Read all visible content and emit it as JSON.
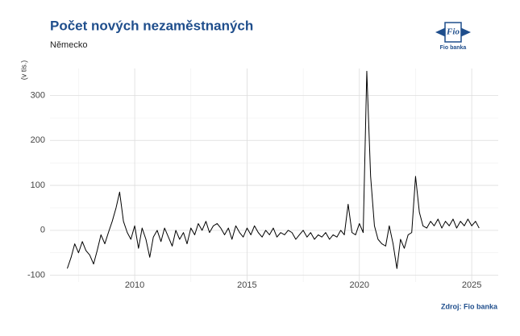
{
  "chart_data": {
    "type": "line",
    "title": "Počet nových nezaměstnaných",
    "subtitle": "Německo",
    "y_label": "(v tis.)",
    "source": "Zdroj: Fio banka",
    "logo": {
      "text": "Fio",
      "caption": "Fio banka"
    },
    "xlim": [
      2006.23,
      2026.18
    ],
    "xticks": [
      2010,
      2015,
      2020,
      2025
    ],
    "xminorticks": [
      2007.5,
      2012.5,
      2017.5,
      2022.5
    ],
    "ylim": [
      -115,
      360
    ],
    "yticks": [
      -100,
      0,
      100,
      200,
      300
    ],
    "yminorticks": [
      -50,
      50,
      150,
      250
    ],
    "grid": true,
    "x": [
      2007.0,
      2007.17,
      2007.33,
      2007.5,
      2007.67,
      2007.83,
      2008.0,
      2008.17,
      2008.33,
      2008.5,
      2008.67,
      2008.83,
      2009.0,
      2009.17,
      2009.33,
      2009.5,
      2009.67,
      2009.83,
      2010.0,
      2010.17,
      2010.33,
      2010.5,
      2010.67,
      2010.83,
      2011.0,
      2011.17,
      2011.33,
      2011.5,
      2011.67,
      2011.83,
      2012.0,
      2012.17,
      2012.33,
      2012.5,
      2012.67,
      2012.83,
      2013.0,
      2013.17,
      2013.33,
      2013.5,
      2013.67,
      2013.83,
      2014.0,
      2014.17,
      2014.33,
      2014.5,
      2014.67,
      2014.83,
      2015.0,
      2015.17,
      2015.33,
      2015.5,
      2015.67,
      2015.83,
      2016.0,
      2016.17,
      2016.33,
      2016.5,
      2016.67,
      2016.83,
      2017.0,
      2017.17,
      2017.33,
      2017.5,
      2017.67,
      2017.83,
      2018.0,
      2018.17,
      2018.33,
      2018.5,
      2018.67,
      2018.83,
      2019.0,
      2019.17,
      2019.33,
      2019.5,
      2019.67,
      2019.83,
      2020.0,
      2020.17,
      2020.33,
      2020.5,
      2020.67,
      2020.83,
      2021.0,
      2021.17,
      2021.33,
      2021.5,
      2021.67,
      2021.83,
      2022.0,
      2022.17,
      2022.33,
      2022.5,
      2022.67,
      2022.83,
      2023.0,
      2023.17,
      2023.33,
      2023.5,
      2023.67,
      2023.83,
      2024.0,
      2024.17,
      2024.33,
      2024.5,
      2024.67,
      2024.83,
      2025.0,
      2025.17,
      2025.33
    ],
    "series": [
      {
        "name": "Německo",
        "color": "#000000",
        "values": [
          -85,
          -60,
          -30,
          -50,
          -25,
          -45,
          -55,
          -75,
          -45,
          -10,
          -30,
          -5,
          20,
          50,
          85,
          20,
          -5,
          -20,
          10,
          -40,
          5,
          -20,
          -60,
          -15,
          0,
          -25,
          5,
          -15,
          -35,
          0,
          -20,
          -5,
          -30,
          5,
          -10,
          15,
          0,
          20,
          -5,
          10,
          15,
          5,
          -10,
          5,
          -20,
          10,
          -5,
          -15,
          5,
          -10,
          10,
          -5,
          -15,
          0,
          -10,
          5,
          -15,
          -5,
          -10,
          0,
          -5,
          -20,
          -10,
          0,
          -15,
          -5,
          -20,
          -10,
          -15,
          -5,
          -20,
          -10,
          -15,
          0,
          -10,
          58,
          -5,
          -10,
          15,
          -5,
          354,
          120,
          10,
          -20,
          -30,
          -35,
          10,
          -30,
          -85,
          -20,
          -40,
          -10,
          -5,
          120,
          40,
          10,
          5,
          20,
          10,
          25,
          5,
          20,
          10,
          25,
          5,
          20,
          10,
          25,
          10,
          20,
          5
        ]
      }
    ]
  }
}
